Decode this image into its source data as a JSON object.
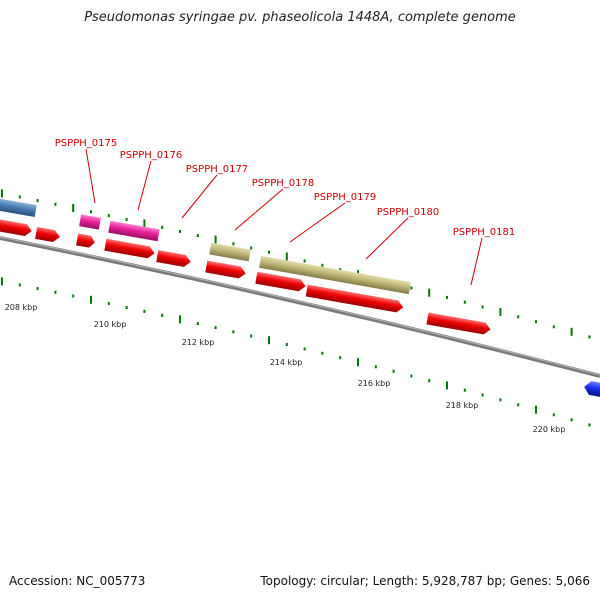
{
  "title": "Pseudomonas syringae pv. phaseolicola 1448A, complete genome",
  "accession": "Accession: NC_005773",
  "summary": "Topology: circular; Length: 5,928,787 bp; Genes: 5,066",
  "ruler_labels": [
    "208 kbp",
    "210 kbp",
    "212 kbp",
    "214 kbp",
    "216 kbp",
    "218 kbp",
    "220 kbp"
  ],
  "gene_labels": [
    "PSPPH_0175",
    "PSPPH_0176",
    "PSPPH_0177",
    "PSPPH_0178",
    "PSPPH_0179",
    "PSPPH_0180",
    "PSPPH_0181"
  ],
  "colors": {
    "cds": "#ee0000",
    "misc_pink": "#e8209a",
    "misc_khaki": "#c0b878",
    "other_blue": "#4a7fb5",
    "neighbor_blue": "#1a2de8",
    "backbone": "#808080",
    "tick": "#007700",
    "label": "#cc0000"
  }
}
